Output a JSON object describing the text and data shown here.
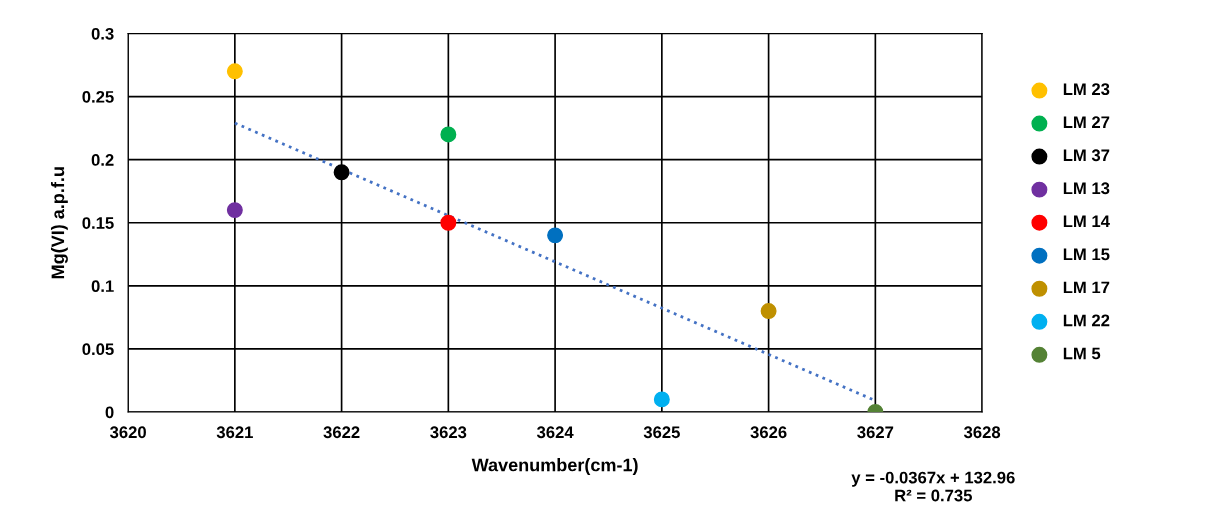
{
  "chart_data": {
    "type": "scatter",
    "xlabel": "Wavenumber(cm-1)",
    "ylabel": "Mg(VI) a.p.f.u",
    "xlim": [
      3620,
      3628
    ],
    "xticks": [
      3620,
      3621,
      3622,
      3623,
      3624,
      3625,
      3626,
      3627,
      3628
    ],
    "ylim": [
      0,
      0.3
    ],
    "yticks": [
      0,
      0.05,
      0.1,
      0.15,
      0.2,
      0.25,
      0.3
    ],
    "grid": true,
    "legend": "right",
    "marker": "circle",
    "series": [
      {
        "name": "LM 23",
        "color": "#ffc000",
        "x": [
          3621
        ],
        "values": [
          0.27
        ]
      },
      {
        "name": "LM 27",
        "color": "#00b050",
        "x": [
          3623
        ],
        "values": [
          0.22
        ]
      },
      {
        "name": "LM 37",
        "color": "#000000",
        "x": [
          3622
        ],
        "values": [
          0.19
        ]
      },
      {
        "name": "LM 13",
        "color": "#7030a0",
        "x": [
          3621
        ],
        "values": [
          0.16
        ]
      },
      {
        "name": "LM 14",
        "color": "#ff0000",
        "x": [
          3623
        ],
        "values": [
          0.15
        ]
      },
      {
        "name": "LM 15",
        "color": "#0070c0",
        "x": [
          3624
        ],
        "values": [
          0.14
        ]
      },
      {
        "name": "LM 17",
        "color": "#bf9000",
        "x": [
          3626
        ],
        "values": [
          0.08
        ]
      },
      {
        "name": "LM 22",
        "color": "#00b0f0",
        "x": [
          3625
        ],
        "values": [
          0.01
        ]
      },
      {
        "name": "LM 5",
        "color": "#548235",
        "x": [
          3627
        ],
        "values": [
          0
        ]
      },
      {
        "type": "line",
        "line_style": "dotted",
        "marker": "none",
        "color": "#4472c4",
        "x": [
          3621,
          3627
        ],
        "values": [
          0.229,
          0.009
        ]
      }
    ],
    "annotations": [
      "y = -0.0367x + 132.96\nR² = 0.735"
    ]
  }
}
